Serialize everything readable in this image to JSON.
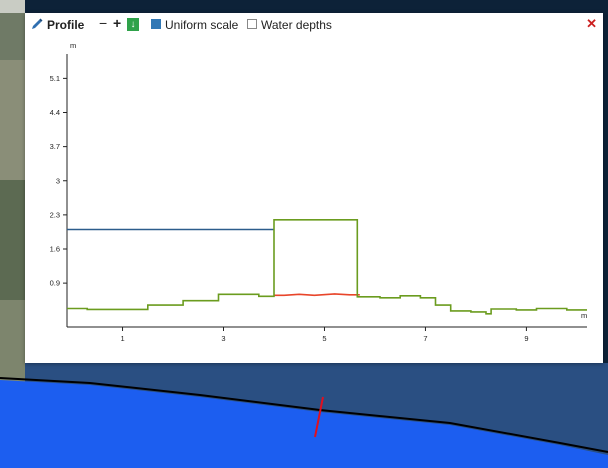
{
  "toolbar": {
    "title": "Profile",
    "zoom_out": "−",
    "zoom_in": "+",
    "download": "↓",
    "uniform_scale": {
      "label": "Uniform scale",
      "checked": true
    },
    "water_depths": {
      "label": "Water depths",
      "checked": false
    },
    "close": "✕"
  },
  "colors": {
    "accent": "#3178b5",
    "download": "#2fa24a",
    "close": "#cc1f1f",
    "terrain": "#6b9c1f",
    "water": "#2c5c8c",
    "bed": "#e8452a"
  },
  "chart_data": {
    "type": "line",
    "y_unit": "m",
    "x_unit": "m",
    "y_ticks": [
      "0.9",
      "1.6",
      "2.3",
      "3",
      "3.7",
      "4.4",
      "5.1"
    ],
    "x_ticks": [
      "1",
      "3",
      "5",
      "7",
      "9"
    ],
    "xlim": [
      -0.1,
      10.2
    ],
    "ylim": [
      0,
      5.6
    ],
    "series": [
      {
        "color": "#2c5c8c",
        "x": [
          -0.1,
          4.0
        ],
        "y": [
          2.0,
          2.0
        ]
      },
      {
        "color": "#e8452a",
        "x": [
          4.0,
          4.2,
          4.5,
          4.8,
          5.2,
          5.5,
          5.7
        ],
        "y": [
          0.65,
          0.65,
          0.67,
          0.65,
          0.68,
          0.66,
          0.66
        ]
      },
      {
        "color": "#6b9c1f",
        "x": [
          -0.1,
          0.3,
          0.3,
          1.5,
          1.5,
          2.2,
          2.2,
          2.9,
          2.9,
          3.7,
          3.7,
          4.0,
          4.0,
          5.65,
          5.65,
          6.1,
          6.1,
          6.5,
          6.5,
          6.9,
          6.9,
          7.2,
          7.2,
          7.5,
          7.5,
          7.9,
          7.9,
          8.2,
          8.2,
          8.3,
          8.3,
          8.8,
          8.8,
          9.2,
          9.2,
          9.8,
          9.8,
          10.2
        ],
        "y": [
          0.38,
          0.38,
          0.36,
          0.36,
          0.45,
          0.45,
          0.54,
          0.54,
          0.67,
          0.67,
          0.63,
          0.63,
          2.2,
          2.2,
          0.62,
          0.62,
          0.6,
          0.6,
          0.64,
          0.64,
          0.6,
          0.6,
          0.45,
          0.45,
          0.33,
          0.33,
          0.31,
          0.31,
          0.27,
          0.27,
          0.37,
          0.37,
          0.35,
          0.35,
          0.38,
          0.38,
          0.35,
          0.35
        ]
      }
    ]
  }
}
